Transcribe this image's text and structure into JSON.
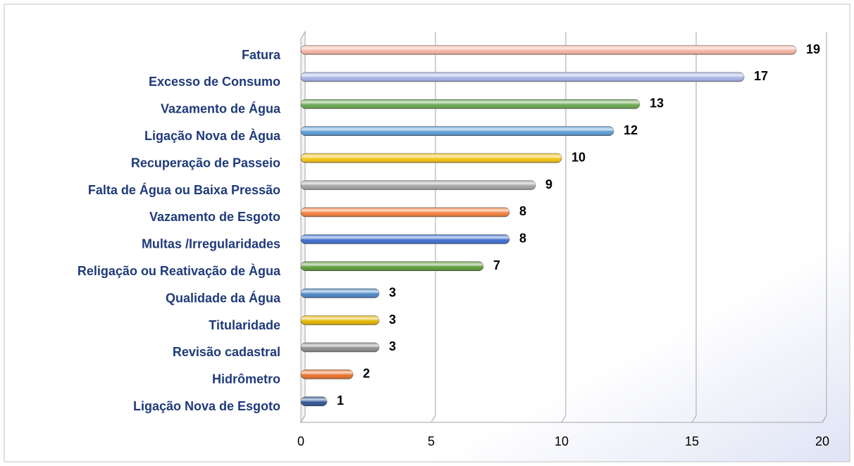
{
  "chart_data": {
    "type": "bar",
    "orientation": "horizontal",
    "categories": [
      "Fatura",
      "Excesso de Consumo",
      "Vazamento de Água",
      "Ligação Nova de Àgua",
      "Recuperação de Passeio",
      "Falta de Água ou Baixa Pressão",
      "Vazamento de Esgoto",
      "Multas /Irregularidades",
      "Religação ou Reativação de Àgua",
      "Qualidade da Água",
      "Titularidade",
      "Revisão cadastral",
      "Hidrômetro",
      "Ligação Nova de Esgoto"
    ],
    "values": [
      19,
      17,
      13,
      12,
      10,
      9,
      8,
      8,
      7,
      3,
      3,
      3,
      2,
      1
    ],
    "colors": [
      "#f4b3a3",
      "#a7b2e6",
      "#6aa84f",
      "#5b9bd5",
      "#f2c20f",
      "#a3a3a3",
      "#f07f3c",
      "#3e6fd0",
      "#5d9a3a",
      "#4a86c5",
      "#e3b400",
      "#8c8c8c",
      "#e8702a",
      "#2f5597"
    ],
    "xlim": [
      0,
      20
    ],
    "xticks": [
      0,
      5,
      10,
      15,
      20
    ],
    "grid": true
  }
}
